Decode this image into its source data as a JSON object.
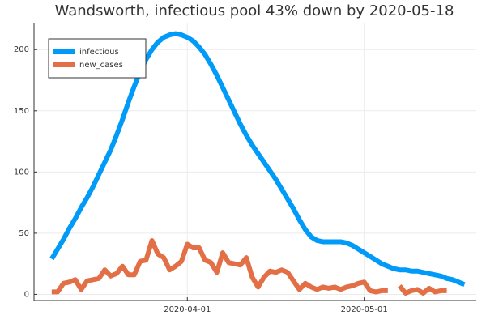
{
  "chart_data": {
    "type": "line",
    "title": "Wandsworth, infectious pool 43% down by 2020-05-18",
    "x": [
      "2020-03-09",
      "2020-03-10",
      "2020-03-11",
      "2020-03-12",
      "2020-03-13",
      "2020-03-14",
      "2020-03-15",
      "2020-03-16",
      "2020-03-17",
      "2020-03-18",
      "2020-03-19",
      "2020-03-20",
      "2020-03-21",
      "2020-03-22",
      "2020-03-23",
      "2020-03-24",
      "2020-03-25",
      "2020-03-26",
      "2020-03-27",
      "2020-03-28",
      "2020-03-29",
      "2020-03-30",
      "2020-03-31",
      "2020-04-01",
      "2020-04-02",
      "2020-04-03",
      "2020-04-04",
      "2020-04-05",
      "2020-04-06",
      "2020-04-07",
      "2020-04-08",
      "2020-04-09",
      "2020-04-10",
      "2020-04-11",
      "2020-04-12",
      "2020-04-13",
      "2020-04-14",
      "2020-04-15",
      "2020-04-16",
      "2020-04-17",
      "2020-04-18",
      "2020-04-19",
      "2020-04-20",
      "2020-04-21",
      "2020-04-22",
      "2020-04-23",
      "2020-04-24",
      "2020-04-25",
      "2020-04-26",
      "2020-04-27",
      "2020-04-28",
      "2020-04-29",
      "2020-04-30",
      "2020-05-01",
      "2020-05-02",
      "2020-05-03",
      "2020-05-04",
      "2020-05-05",
      "2020-05-06",
      "2020-05-07",
      "2020-05-08",
      "2020-05-09",
      "2020-05-10",
      "2020-05-11",
      "2020-05-12",
      "2020-05-13",
      "2020-05-14",
      "2020-05-15",
      "2020-05-16",
      "2020-05-17",
      "2020-05-18"
    ],
    "series": [
      {
        "name": "infectious",
        "color": "#009af9",
        "values": [
          29,
          37,
          45,
          54,
          62,
          71,
          79,
          88,
          98,
          108,
          118,
          130,
          143,
          157,
          170,
          182,
          192,
          200,
          206,
          210,
          212,
          213,
          212,
          210,
          207,
          202,
          196,
          188,
          179,
          169,
          159,
          149,
          139,
          130,
          122,
          115,
          108,
          101,
          94,
          86,
          78,
          70,
          61,
          53,
          47,
          44,
          43,
          43,
          43,
          43,
          42,
          40,
          37,
          34,
          31,
          28,
          25,
          23,
          21,
          20,
          20,
          19,
          19,
          18,
          17,
          16,
          15,
          13,
          12,
          10,
          8
        ]
      },
      {
        "name": "new_cases",
        "color": "#e26f46",
        "values": [
          2,
          2,
          9,
          10,
          12,
          4,
          11,
          12,
          13,
          20,
          15,
          17,
          23,
          16,
          16,
          27,
          28,
          44,
          33,
          30,
          20,
          23,
          27,
          41,
          38,
          38,
          28,
          26,
          18,
          34,
          26,
          25,
          24,
          30,
          14,
          6,
          14,
          19,
          18,
          20,
          18,
          11,
          4,
          9,
          6,
          4,
          6,
          5,
          6,
          4,
          6,
          7,
          9,
          10,
          3,
          2,
          3,
          3,
          null,
          7,
          1,
          3,
          4,
          1,
          5,
          2,
          3,
          3,
          null,
          null,
          null
        ]
      }
    ],
    "xlim": [
      "2020-03-06",
      "2020-05-20"
    ],
    "xticks": [
      "2020-04-01",
      "2020-05-01"
    ],
    "ylim": [
      -5,
      222
    ],
    "yticks": [
      0,
      50,
      100,
      150,
      200
    ],
    "grid": true,
    "legend": "top-left"
  }
}
